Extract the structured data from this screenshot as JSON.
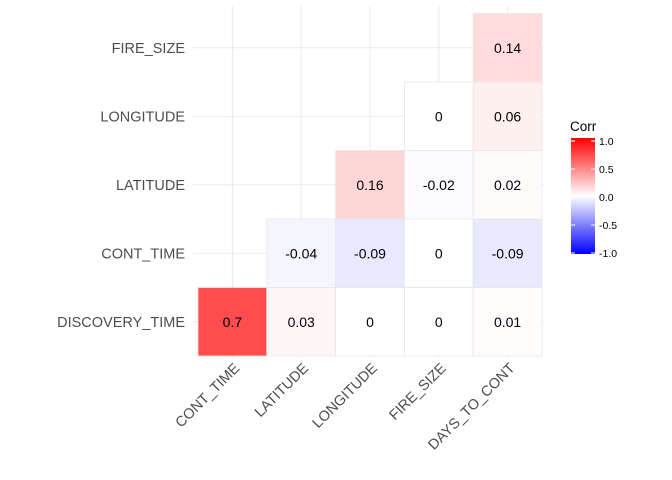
{
  "chart_data": {
    "type": "heatmap",
    "variant": "lower-triangle correlation matrix",
    "rows": [
      "DISCOVERY_TIME",
      "CONT_TIME",
      "LATITUDE",
      "LONGITUDE",
      "FIRE_SIZE"
    ],
    "columns": [
      "CONT_TIME",
      "LATITUDE",
      "LONGITUDE",
      "FIRE_SIZE",
      "DAYS_TO_CONT"
    ],
    "cells": [
      {
        "row": "DISCOVERY_TIME",
        "col": "CONT_TIME",
        "value": 0.7,
        "label": "0.7"
      },
      {
        "row": "DISCOVERY_TIME",
        "col": "LATITUDE",
        "value": 0.03,
        "label": "0.03"
      },
      {
        "row": "DISCOVERY_TIME",
        "col": "LONGITUDE",
        "value": 0,
        "label": "0"
      },
      {
        "row": "DISCOVERY_TIME",
        "col": "FIRE_SIZE",
        "value": 0,
        "label": "0"
      },
      {
        "row": "DISCOVERY_TIME",
        "col": "DAYS_TO_CONT",
        "value": 0.01,
        "label": "0.01"
      },
      {
        "row": "CONT_TIME",
        "col": "LATITUDE",
        "value": -0.04,
        "label": "-0.04"
      },
      {
        "row": "CONT_TIME",
        "col": "LONGITUDE",
        "value": -0.09,
        "label": "-0.09"
      },
      {
        "row": "CONT_TIME",
        "col": "FIRE_SIZE",
        "value": 0,
        "label": "0"
      },
      {
        "row": "CONT_TIME",
        "col": "DAYS_TO_CONT",
        "value": -0.09,
        "label": "-0.09"
      },
      {
        "row": "LATITUDE",
        "col": "LONGITUDE",
        "value": 0.16,
        "label": "0.16"
      },
      {
        "row": "LATITUDE",
        "col": "FIRE_SIZE",
        "value": -0.02,
        "label": "-0.02"
      },
      {
        "row": "LATITUDE",
        "col": "DAYS_TO_CONT",
        "value": 0.02,
        "label": "0.02"
      },
      {
        "row": "LONGITUDE",
        "col": "FIRE_SIZE",
        "value": 0,
        "label": "0"
      },
      {
        "row": "LONGITUDE",
        "col": "DAYS_TO_CONT",
        "value": 0.06,
        "label": "0.06"
      },
      {
        "row": "FIRE_SIZE",
        "col": "DAYS_TO_CONT",
        "value": 0.14,
        "label": "0.14"
      }
    ],
    "legend": {
      "title": "Corr",
      "ticks": [
        "1.0",
        "0.5",
        "0.0",
        "-0.5",
        "-1.0"
      ],
      "range": [
        -1,
        1
      ],
      "placement": "right"
    },
    "colors": {
      "low": "#0000ff",
      "mid": "#ffffff",
      "high": "#ff0000"
    },
    "grid": true
  }
}
